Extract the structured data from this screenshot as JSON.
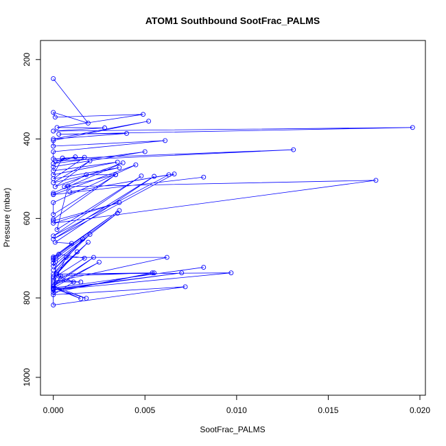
{
  "chart_data": {
    "type": "line",
    "title": "ATOM1 Southbound SootFrac_PALMS",
    "xlabel": "SootFrac_PALMS",
    "ylabel": "Pressure (mbar)",
    "xlim": [
      -0.0007,
      0.0203
    ],
    "ylim": [
      1045,
      152
    ],
    "y_reversed": true,
    "x_ticks": [
      0.0,
      0.005,
      0.01,
      0.015,
      0.02
    ],
    "x_tick_labels": [
      "0.000",
      "0.005",
      "0.010",
      "0.015",
      "0.020"
    ],
    "y_ticks": [
      200,
      400,
      600,
      800,
      1000
    ],
    "y_tick_labels": [
      "200",
      "400",
      "600",
      "800",
      "1000"
    ],
    "grid": false,
    "legend": "none",
    "series": [
      {
        "color": "#0000ff",
        "marker": "open-circle",
        "x": [
          0.0,
          0.0019,
          0.0,
          0.0001,
          0.0049,
          0.0002,
          0.0028,
          0.0,
          0.0196,
          0.0003,
          0.004,
          0.0,
          0.0052,
          0.0,
          0.0,
          0.0061,
          0.0,
          0.0,
          0.0131,
          0.0001,
          0.0012,
          0.0,
          0.005,
          0.0,
          0.0,
          0.0035,
          0.0,
          0.0005,
          0.0017,
          0.0,
          0.0036,
          0.0,
          0.002,
          0.0001,
          0.0038,
          0.0,
          0.0,
          0.0082,
          0.0,
          0.0045,
          0.0,
          0.0,
          0.0034,
          0.0,
          0.0,
          0.0036,
          0.0,
          0.0176,
          0.0006,
          0.0018,
          0.0034,
          0.0008,
          0.0002,
          0.0048,
          0.0,
          0.0063,
          0.0009,
          0.0066,
          0.0,
          0.0055,
          0.0001,
          0.001,
          0.0,
          0.0036,
          0.0,
          0.0,
          0.0035,
          0.0,
          0.0001,
          0.0,
          0.002,
          0.0,
          0.0016,
          0.0,
          0.0019,
          0.0,
          0.0013,
          0.0,
          0.0017,
          0.0003,
          0.0,
          0.0015,
          0.0,
          0.0062,
          0.0007,
          0.0,
          0.0022,
          0.0,
          0.0025,
          0.0,
          0.0082,
          0.0,
          0.0004,
          0.0,
          0.007,
          0.0,
          0.0097,
          0.0002,
          0.0055,
          0.0,
          0.0054,
          0.0003,
          0.0011,
          0.0,
          0.0072,
          0.0,
          0.0,
          0.0018,
          0.0,
          0.0015,
          0.0,
          0.0
        ],
        "y": [
          248,
          360,
          333,
          345,
          338,
          371,
          372,
          380,
          371,
          388,
          386,
          400,
          355,
          404,
          418,
          404,
          432,
          450,
          427,
          455,
          445,
          462,
          432,
          470,
          480,
          458,
          490,
          448,
          446,
          500,
          472,
          510,
          455,
          520,
          460,
          536,
          540,
          496,
          540,
          465,
          560,
          590,
          490,
          602,
          606,
          560,
          612,
          504,
          520,
          490,
          490,
          518,
          628,
          493,
          644,
          490,
          533,
          488,
          652,
          494,
          660,
          663,
          697,
          580,
          700,
          704,
          587,
          712,
          698,
          720,
          640,
          730,
          652,
          740,
          660,
          746,
          684,
          750,
          700,
          690,
          755,
          760,
          760,
          698,
          698,
          765,
          698,
          770,
          710,
          775,
          723,
          775,
          745,
          778,
          737,
          780,
          737,
          740,
          737,
          786,
          737,
          745,
          760,
          792,
          772,
          818,
          770,
          801,
          775,
          802,
          771,
          776
        ]
      }
    ]
  }
}
